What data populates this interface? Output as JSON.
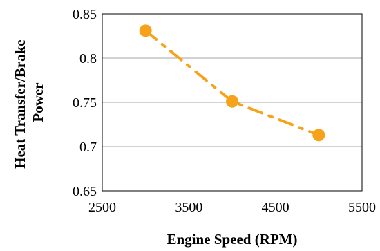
{
  "chart_data": {
    "type": "line",
    "title": "",
    "xlabel": "Engine Speed (RPM)",
    "ylabel_lines": [
      "Heat Transfer/Brake",
      "Power"
    ],
    "xlim": [
      2500,
      5500
    ],
    "ylim": [
      0.65,
      0.85
    ],
    "xticks": [
      2500,
      3500,
      4500,
      5500
    ],
    "yticks": [
      0.65,
      0.7,
      0.75,
      0.8,
      0.85
    ],
    "xtick_labels": [
      "2500",
      "3500",
      "4500",
      "5500"
    ],
    "ytick_labels": [
      "0.65",
      "0.7",
      "0.75",
      "0.8",
      "0.85"
    ],
    "grid": "horizontal",
    "legend": "none",
    "series": [
      {
        "x": [
          3000,
          4000,
          5000
        ],
        "y": [
          0.831,
          0.751,
          0.713
        ],
        "color": "#F7A21B",
        "line_style": "dash-dot",
        "marker": "circle"
      }
    ]
  }
}
